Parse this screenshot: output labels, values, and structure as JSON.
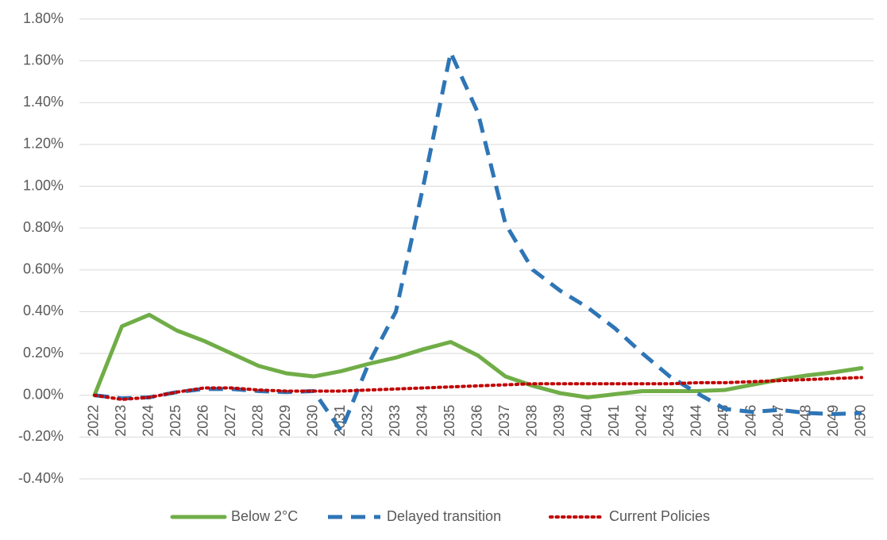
{
  "chart_data": {
    "type": "line",
    "categories": [
      "2022",
      "2023",
      "2024",
      "2025",
      "2026",
      "2027",
      "2028",
      "2029",
      "2030",
      "2031",
      "2032",
      "2033",
      "2034",
      "2035",
      "2036",
      "2037",
      "2038",
      "2039",
      "2040",
      "2041",
      "2042",
      "2043",
      "2044",
      "2045",
      "2046",
      "2047",
      "2048",
      "2049",
      "2050"
    ],
    "series": [
      {
        "name": "Below 2°C",
        "color": "#70ad47",
        "line_style": "solid",
        "values": [
          0,
          0.33,
          0.385,
          0.31,
          0.26,
          0.2,
          0.14,
          0.105,
          0.09,
          0.115,
          0.15,
          0.18,
          0.22,
          0.255,
          0.19,
          0.09,
          0.045,
          0.01,
          -0.01,
          0.005,
          0.02,
          0.02,
          0.02,
          0.025,
          0.05,
          0.075,
          0.095,
          0.11,
          0.13
        ]
      },
      {
        "name": "Delayed transition",
        "color": "#2e75b6",
        "line_style": "dashed",
        "values": [
          0,
          -0.015,
          -0.01,
          0.015,
          0.03,
          0.03,
          0.02,
          0.015,
          0.02,
          -0.17,
          0.15,
          0.4,
          1.0,
          1.64,
          1.35,
          0.82,
          0.6,
          0.5,
          0.42,
          0.32,
          0.2,
          0.09,
          0.01,
          -0.065,
          -0.08,
          -0.07,
          -0.085,
          -0.09,
          -0.085
        ]
      },
      {
        "name": "Current Policies",
        "color": "#c00000",
        "line_style": "dotted",
        "values": [
          0,
          -0.02,
          -0.01,
          0.015,
          0.035,
          0.035,
          0.025,
          0.02,
          0.02,
          0.02,
          0.025,
          0.03,
          0.035,
          0.04,
          0.045,
          0.05,
          0.055,
          0.055,
          0.055,
          0.055,
          0.055,
          0.055,
          0.06,
          0.06,
          0.065,
          0.07,
          0.075,
          0.08,
          0.085
        ]
      }
    ],
    "ylim": [
      -0.4,
      1.8
    ],
    "yticks": [
      {
        "value": -0.4,
        "label": "-0.40%"
      },
      {
        "value": -0.2,
        "label": "-0.20%"
      },
      {
        "value": 0,
        "label": "0.00%"
      },
      {
        "value": 0.2,
        "label": "0.20%"
      },
      {
        "value": 0.4,
        "label": "0.40%"
      },
      {
        "value": 0.6,
        "label": "0.60%"
      },
      {
        "value": 0.8,
        "label": "0.80%"
      },
      {
        "value": 1.0,
        "label": "1.00%"
      },
      {
        "value": 1.2,
        "label": "1.20%"
      },
      {
        "value": 1.4,
        "label": "1.40%"
      },
      {
        "value": 1.6,
        "label": "1.60%"
      },
      {
        "value": 1.8,
        "label": "1.80%"
      }
    ],
    "grid": true,
    "legend": "bottom"
  }
}
